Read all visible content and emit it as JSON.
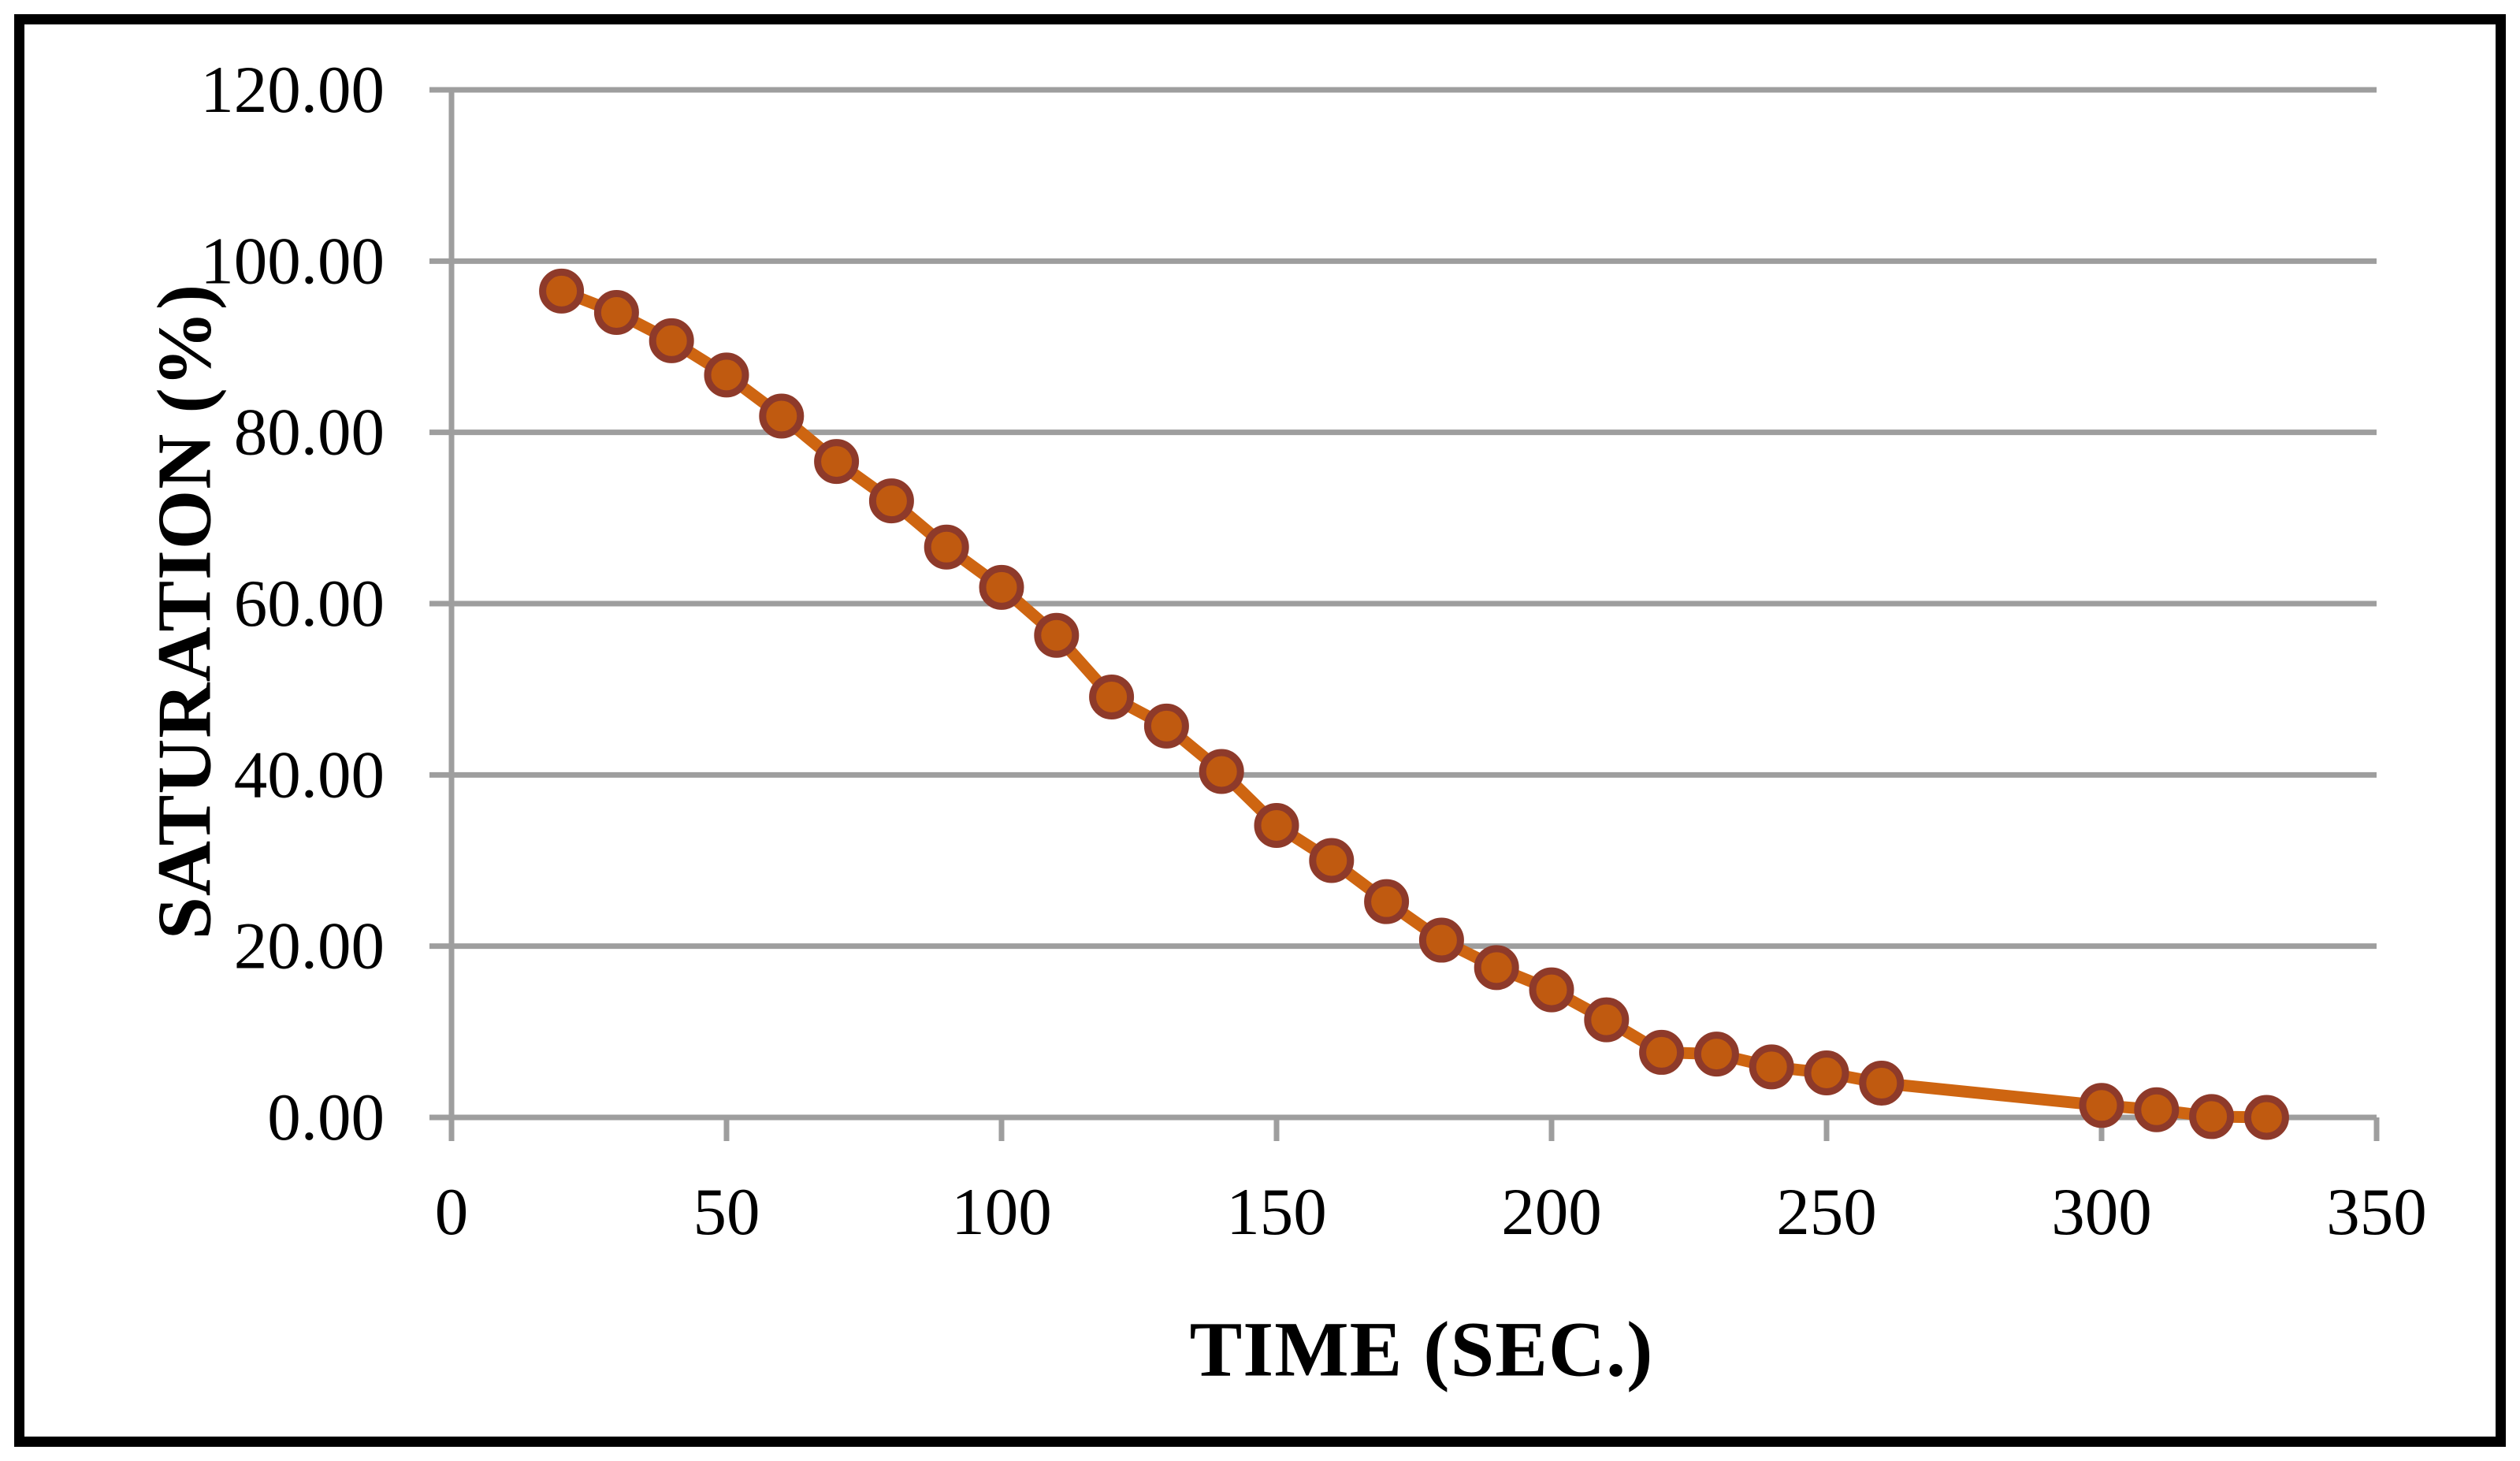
{
  "chart": {
    "x_axis": {
      "title": "TIME (SEC.)",
      "tick_values": [
        0,
        50,
        100,
        150,
        200,
        250,
        300,
        350
      ],
      "min": 0,
      "max": 350
    },
    "y_axis": {
      "title": "SATURATION (%)",
      "tick_labels": [
        "0.00",
        "20.00",
        "40.00",
        "60.00",
        "80.00",
        "100.00",
        "120.00"
      ],
      "tick_values": [
        0,
        20,
        40,
        60,
        80,
        100,
        120
      ],
      "min": 0,
      "max": 120
    },
    "colors": {
      "line": "#CE6511",
      "marker_fill": "#C05A10",
      "marker_border": "#8E3A2A",
      "grid": "#9E9E9E",
      "frame": "#000000",
      "background": "#FFFFFF"
    }
  },
  "chart_data": {
    "type": "line",
    "title": "",
    "xlabel": "TIME (SEC.)",
    "ylabel": "SATURATION (%)",
    "xlim": [
      0,
      350
    ],
    "ylim": [
      0,
      120
    ],
    "x_tick_step": 50,
    "y_tick_step": 20,
    "grid": "horizontal gridlines only",
    "legend": "none",
    "series": [
      {
        "name": "Saturation",
        "x": [
          20,
          30,
          40,
          50,
          60,
          70,
          80,
          90,
          100,
          110,
          120,
          130,
          140,
          150,
          160,
          170,
          180,
          190,
          200,
          210,
          220,
          230,
          240,
          250,
          260,
          300,
          310,
          320,
          330
        ],
        "y": [
          96.5,
          94.0,
          90.7,
          86.7,
          81.9,
          76.6,
          72.0,
          66.6,
          61.9,
          56.3,
          49.1,
          45.7,
          40.4,
          34.1,
          30.0,
          25.2,
          20.7,
          17.5,
          14.9,
          11.4,
          7.6,
          7.4,
          5.9,
          5.2,
          4.0,
          1.4,
          0.9,
          0.1,
          0.0
        ]
      }
    ]
  }
}
